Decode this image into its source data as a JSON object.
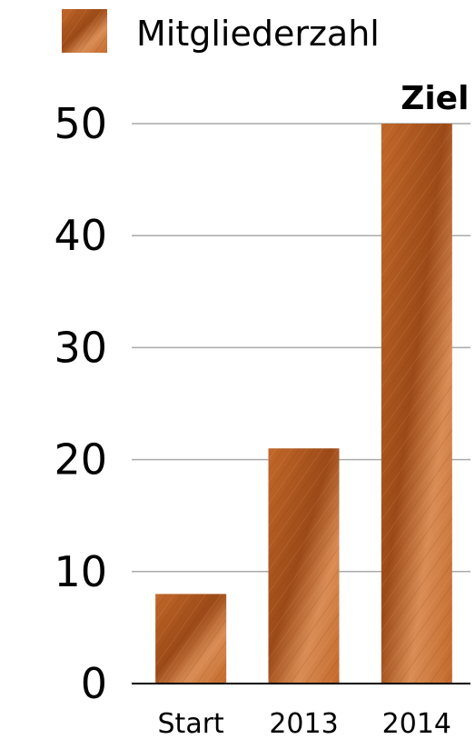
{
  "chart_data": {
    "type": "bar",
    "categories": [
      "Start",
      "2013",
      "2014"
    ],
    "series": [
      {
        "name": "Mitgliederzahl",
        "values": [
          8,
          21,
          50
        ]
      }
    ],
    "ylim": [
      0,
      50
    ],
    "yticks": [
      0,
      10,
      20,
      30,
      40,
      50
    ],
    "ytick_labels": [
      "0",
      "10",
      "20",
      "30",
      "40",
      "50"
    ],
    "grid": true,
    "legend": "top",
    "annotations": [
      {
        "text": "Ziel",
        "category": "2014"
      }
    ],
    "colors": {
      "bar_dark": "#9c4a17",
      "bar_mid": "#c2682b",
      "bar_light": "#d98d55"
    }
  }
}
